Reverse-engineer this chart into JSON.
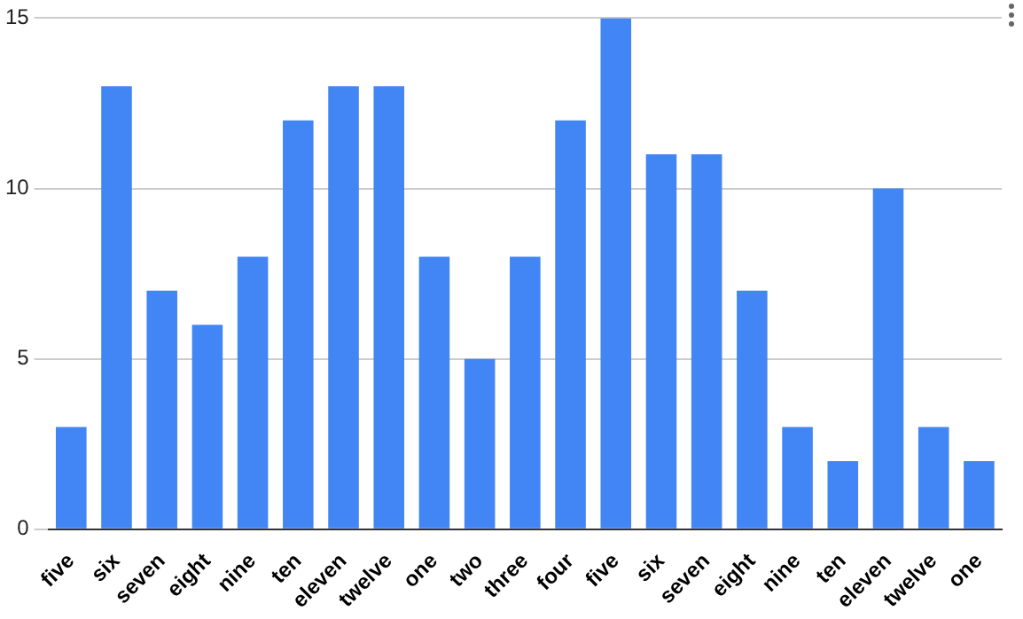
{
  "chart_data": {
    "type": "bar",
    "categories": [
      "five",
      "six",
      "seven",
      "eight",
      "nine",
      "ten",
      "eleven",
      "twelve",
      "one",
      "two",
      "three",
      "four",
      "five",
      "six",
      "seven",
      "eight",
      "nine",
      "ten",
      "eleven",
      "twelve",
      "one"
    ],
    "values": [
      3,
      13,
      7,
      6,
      8,
      12,
      13,
      13,
      8,
      5,
      8,
      12,
      15,
      11,
      11,
      7,
      3,
      2,
      10,
      3,
      2
    ],
    "color": "#4285f4",
    "ylim": [
      0,
      15
    ],
    "yticks": [
      0,
      5,
      10,
      15
    ],
    "grid": "y",
    "legend": false
  }
}
